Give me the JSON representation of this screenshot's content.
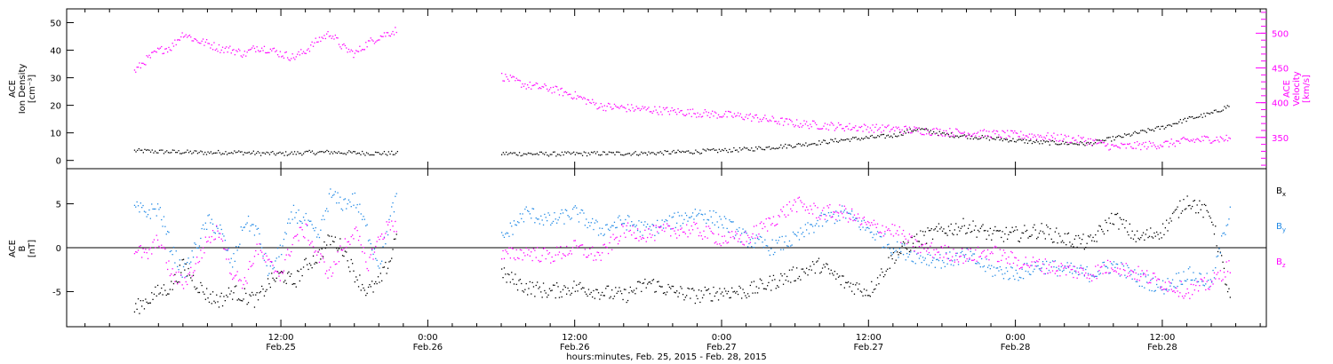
{
  "chart_data": [
    {
      "type": "scatter",
      "panel": "top",
      "ylabel_lines": [
        "ACE",
        "Ion Density",
        "[cm⁻³]"
      ],
      "ylabel_right_lines": [
        "ACE",
        "Velocity",
        "[km/s]"
      ],
      "ylim": [
        -3,
        55
      ],
      "yticks": [
        0,
        10,
        20,
        30,
        40,
        50
      ],
      "y2lim": [
        305,
        535
      ],
      "y2ticks": [
        350,
        400,
        450,
        500
      ],
      "series": [
        {
          "color": "#000000",
          "axis": "left",
          "segments": [
            {
              "x": [
                0,
                2,
                4,
                6,
                8,
                10,
                12,
                14,
                16,
                18,
                21.5
              ],
              "y": [
                3.5,
                3.2,
                3.0,
                2.8,
                3.0,
                2.6,
                2.4,
                2.8,
                3.0,
                2.7,
                2.5
              ]
            },
            {
              "x": [
                30,
                34,
                38,
                42,
                46,
                50,
                54,
                58,
                62,
                64,
                66,
                70,
                74,
                78,
                80,
                82,
                84,
                86,
                88,
                89.5
              ],
              "y": [
                2.5,
                2.3,
                2.5,
                2.6,
                3.2,
                4.0,
                5.5,
                7.5,
                9.0,
                11.5,
                9.5,
                8.0,
                6.5,
                6.0,
                8.0,
                10.0,
                12.0,
                15.0,
                17.0,
                20.0
              ]
            }
          ]
        },
        {
          "color": "#ff00ff",
          "axis": "right",
          "segments": [
            {
              "x": [
                0,
                1,
                2,
                3,
                4,
                5,
                6,
                7,
                8,
                9,
                10,
                11,
                12,
                13,
                14,
                15,
                16,
                17,
                18,
                19,
                20,
                21.5
              ],
              "y": [
                445,
                462,
                475,
                480,
                500,
                490,
                485,
                478,
                476,
                470,
                480,
                477,
                470,
                465,
                475,
                490,
                500,
                480,
                470,
                485,
                495,
                505
              ]
            },
            {
              "x": [
                30,
                32,
                34,
                36,
                38,
                42,
                46,
                50,
                54,
                58,
                62,
                66,
                70,
                74,
                78,
                80,
                82,
                84,
                86,
                88,
                89.5
              ],
              "y": [
                438,
                425,
                420,
                410,
                395,
                390,
                385,
                380,
                370,
                365,
                362,
                358,
                355,
                352,
                345,
                336,
                338,
                340,
                345,
                348,
                348
              ]
            }
          ]
        }
      ]
    },
    {
      "type": "scatter",
      "panel": "bottom",
      "ylabel_lines": [
        "ACE",
        "B",
        "[nT]"
      ],
      "ylim": [
        -9,
        9
      ],
      "yticks": [
        -5,
        0,
        5
      ],
      "legend": [
        {
          "label": "Bx",
          "color": "#000000"
        },
        {
          "label": "By",
          "color": "#1e88e5"
        },
        {
          "label": "Bz",
          "color": "#ff00ff"
        }
      ],
      "series": [
        {
          "name": "Bx",
          "color": "#000000",
          "segments": [
            {
              "x": [
                0,
                1,
                2,
                3,
                4,
                5,
                6,
                7,
                8,
                9,
                10,
                11,
                12,
                13,
                14,
                15,
                16,
                17,
                18,
                19,
                20,
                21,
                21.5
              ],
              "y": [
                -7.0,
                -6.0,
                -5.0,
                -4.5,
                -2.0,
                -4.0,
                -5.5,
                -6.0,
                -5.0,
                -5.5,
                -6.0,
                -4.0,
                -3.0,
                -4.0,
                -2.0,
                -1.0,
                1.0,
                0.0,
                -3.0,
                -5.0,
                -4.0,
                -1.0,
                3.0
              ]
            },
            {
              "x": [
                30,
                32,
                34,
                36,
                38,
                40,
                42,
                44,
                46,
                48,
                50,
                52,
                54,
                56,
                58,
                60,
                62,
                64,
                66,
                68,
                70,
                72,
                74,
                76,
                78,
                80,
                82,
                84,
                86,
                88,
                89.5
              ],
              "y": [
                -3.0,
                -4.5,
                -5.0,
                -4.5,
                -5.0,
                -5.5,
                -4.0,
                -5.0,
                -5.5,
                -5.0,
                -5.0,
                -4.0,
                -3.0,
                -2.0,
                -4.0,
                -5.0,
                -1.0,
                1.0,
                2.0,
                2.5,
                1.5,
                1.5,
                2.0,
                1.0,
                0.5,
                3.5,
                1.0,
                2.0,
                5.5,
                3.5,
                -6.0
              ]
            }
          ]
        },
        {
          "name": "By",
          "color": "#1e88e5",
          "segments": [
            {
              "x": [
                0,
                1,
                2,
                3,
                4,
                5,
                6,
                7,
                8,
                9,
                10,
                11,
                12,
                13,
                14,
                15,
                16,
                17,
                18,
                19,
                20,
                21,
                21.5
              ],
              "y": [
                4.5,
                4.0,
                4.5,
                0.0,
                -3.0,
                0.0,
                3.0,
                2.0,
                -2.0,
                3.0,
                2.0,
                -3.0,
                0.0,
                4.0,
                3.0,
                1.0,
                6.0,
                5.0,
                5.5,
                2.0,
                -2.0,
                4.0,
                6.0
              ]
            },
            {
              "x": [
                30,
                32,
                34,
                36,
                38,
                40,
                42,
                44,
                46,
                48,
                50,
                52,
                54,
                56,
                58,
                60,
                62,
                64,
                66,
                68,
                70,
                72,
                74,
                76,
                78,
                80,
                82,
                84,
                86,
                88,
                89.5
              ],
              "y": [
                1.0,
                4.0,
                3.0,
                4.0,
                2.0,
                3.0,
                2.0,
                3.0,
                4.0,
                3.0,
                1.0,
                0.0,
                1.0,
                3.0,
                4.0,
                2.0,
                0.0,
                -1.0,
                -1.5,
                -1.0,
                -2.5,
                -3.0,
                -2.0,
                -2.5,
                -3.0,
                -2.0,
                -3.5,
                -4.5,
                -3.0,
                -4.0,
                4.5
              ]
            }
          ]
        },
        {
          "name": "Bz",
          "color": "#ff00ff",
          "segments": [
            {
              "x": [
                0,
                1,
                2,
                3,
                4,
                5,
                6,
                7,
                8,
                9,
                10,
                11,
                12,
                13,
                14,
                15,
                16,
                17,
                18,
                19,
                20,
                21,
                21.5
              ],
              "y": [
                0.0,
                -1.0,
                1.0,
                -3.0,
                -4.0,
                -2.0,
                1.0,
                2.0,
                -3.0,
                -4.0,
                0.0,
                -2.0,
                -3.0,
                1.0,
                2.0,
                -1.0,
                -3.0,
                0.0,
                2.0,
                -2.0,
                1.0,
                3.0,
                2.0
              ]
            },
            {
              "x": [
                30,
                32,
                34,
                36,
                38,
                40,
                42,
                44,
                46,
                48,
                50,
                52,
                54,
                56,
                58,
                60,
                62,
                64,
                66,
                68,
                70,
                72,
                74,
                76,
                78,
                80,
                82,
                84,
                86,
                88,
                89.5
              ],
              "y": [
                -1.0,
                -0.5,
                -1.0,
                0.0,
                -1.0,
                2.0,
                1.5,
                2.0,
                2.0,
                1.0,
                1.0,
                3.0,
                5.0,
                4.0,
                4.0,
                2.5,
                2.0,
                0.0,
                -0.5,
                -1.0,
                -0.5,
                -1.5,
                -2.0,
                -2.5,
                -3.0,
                -2.0,
                -3.0,
                -4.0,
                -5.0,
                -4.0,
                -2.0
              ]
            }
          ]
        }
      ]
    }
  ],
  "x_axis": {
    "range_hours": [
      -5.5,
      92.5
    ],
    "ticks": [
      {
        "hour": 12,
        "line1": "12:00",
        "line2": "Feb.25"
      },
      {
        "hour": 24,
        "line1": "0:00",
        "line2": "Feb.26"
      },
      {
        "hour": 36,
        "line1": "12:00",
        "line2": "Feb.26"
      },
      {
        "hour": 48,
        "line1": "0:00",
        "line2": "Feb.27"
      },
      {
        "hour": 60,
        "line1": "12:00",
        "line2": "Feb.27"
      },
      {
        "hour": 72,
        "line1": "0:00",
        "line2": "Feb.28"
      },
      {
        "hour": 84,
        "line1": "12:00",
        "line2": "Feb.28"
      }
    ],
    "xlabel": "hours:minutes, Feb. 25, 2015 - Feb. 28, 2015"
  },
  "colors": {
    "black": "#000000",
    "magenta": "#ff00ff",
    "blue": "#1e88e5"
  }
}
